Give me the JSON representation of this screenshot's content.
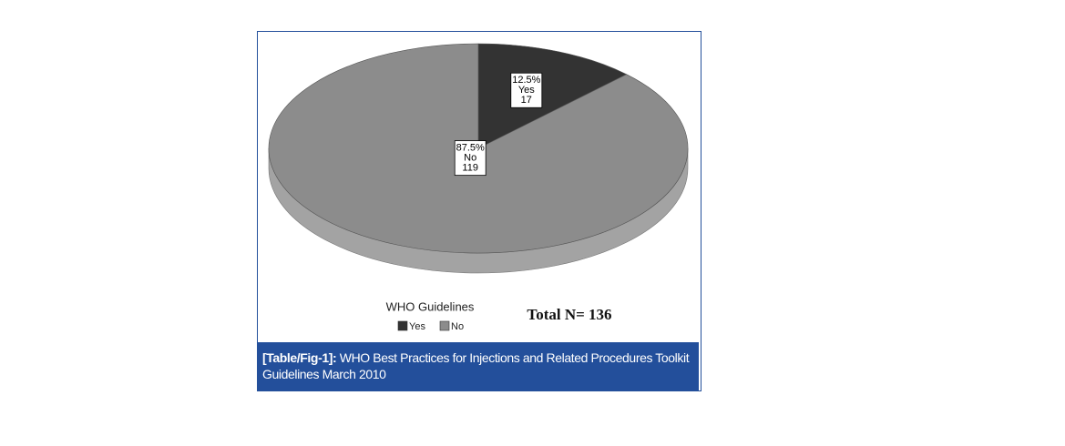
{
  "chart_data": {
    "type": "pie",
    "categories": [
      "Yes",
      "No"
    ],
    "values": [
      12.5,
      87.5
    ],
    "value_labels": [
      "12.5%",
      "87.5%"
    ],
    "counts": [
      17,
      119
    ],
    "colors": [
      "#333333",
      "#8c8c8c"
    ],
    "legend_title": "WHO Guidelines",
    "annotation": "Total N= 136"
  },
  "caption": {
    "label": "[Table/Fig-1]:",
    "text": "WHO Best Practices for Injections and Related Procedures Toolkit Guidelines March 2010"
  }
}
